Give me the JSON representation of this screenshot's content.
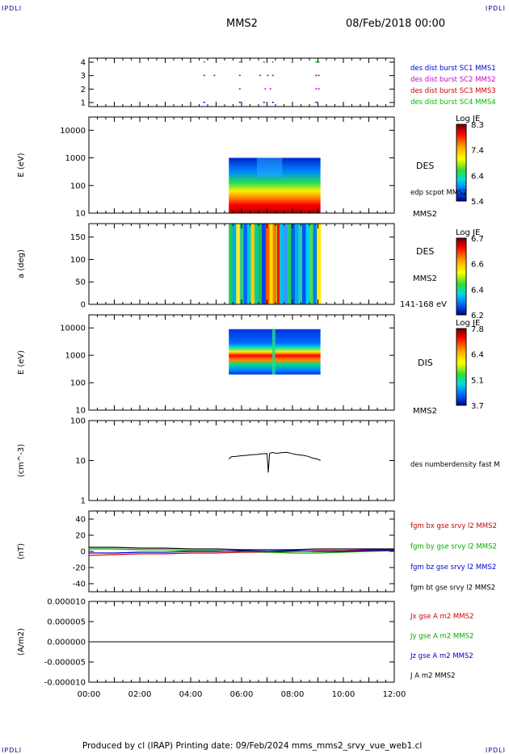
{
  "corner_tl": "IPDLI",
  "corner_tr": "IPDLI",
  "corner_bl": "IPDLI",
  "corner_br": "IPDLI",
  "title": "MMS2",
  "datetime": "08/Feb/2018 00:00",
  "footer": "Produced by cl (IRAP)   Printing date: 09/Feb/2024   mms_mms2_srvy_vue_web1.cl",
  "chart_data": [
    {
      "type": "scatter",
      "panel": "burst-coverage",
      "yticks": [
        "1",
        "2",
        "3",
        "4"
      ],
      "ylim": [
        0.7,
        4.3
      ],
      "legend": [
        {
          "label": "des dist burst SC1 MMS1",
          "color": "#0000cc"
        },
        {
          "label": "des dist burst SC2 MMS2",
          "color": "#cc00cc"
        },
        {
          "label": "des dist burst SC3 MMS3",
          "color": "#cc0000"
        },
        {
          "label": "des dist burst SC4 MMS4",
          "color": "#00bb00"
        }
      ],
      "series": [
        {
          "name": "des dist burst SC1 MMS1",
          "y": 1,
          "x": [
            4.5,
            5.9,
            6.85,
            7.2,
            8.9
          ]
        },
        {
          "name": "des dist burst SC2 MMS2",
          "y": 2,
          "x": [
            5.9,
            6.9,
            7.1,
            8.9,
            9.0
          ]
        },
        {
          "name": "des dist burst SC3 MMS3",
          "y": 3,
          "x": [
            4.5,
            4.9,
            5.9,
            6.7,
            7.0,
            7.2,
            8.9,
            9.0
          ]
        },
        {
          "name": "des dist burst SC4 MMS4",
          "y": 4,
          "x": [
            4.5,
            5.9,
            6.85,
            7.2,
            8.9,
            9.0
          ]
        }
      ]
    },
    {
      "type": "heatmap",
      "panel": "des-energy",
      "ylabel": "E (eV)",
      "log_y": true,
      "yticks": [
        "10",
        "100",
        "1000",
        "10000"
      ],
      "ylim": [
        10,
        30000
      ],
      "x_range": [
        5.5,
        9.1
      ],
      "colorbar": {
        "title": "Log JE",
        "ticks": [
          "8.3",
          "7.4",
          "6.4",
          "5.4"
        ]
      },
      "right_labels": [
        "DES",
        "edp scpot MMS2",
        "MMS2"
      ]
    },
    {
      "type": "heatmap",
      "panel": "des-pitch-angle",
      "ylabel": "a (deg)",
      "yticks": [
        "0",
        "50",
        "100",
        "150"
      ],
      "ylim": [
        0,
        180
      ],
      "x_range": [
        5.5,
        9.1
      ],
      "colorbar": {
        "title": "Log JE",
        "ticks": [
          "6.7",
          "6.6",
          "6.4",
          "6.2"
        ]
      },
      "right_labels": [
        "DES",
        "MMS2",
        "141-168 eV"
      ]
    },
    {
      "type": "heatmap",
      "panel": "dis-energy",
      "ylabel": "E (eV)",
      "log_y": true,
      "yticks": [
        "10",
        "100",
        "1000",
        "10000"
      ],
      "ylim": [
        10,
        30000
      ],
      "x_range": [
        5.5,
        9.1
      ],
      "colorbar": {
        "title": "Log JE",
        "ticks": [
          "7.8",
          "6.4",
          "5.1",
          "3.7"
        ]
      },
      "right_labels": [
        "DIS",
        "MMS2"
      ]
    },
    {
      "type": "line",
      "panel": "number-density",
      "ylabel": "(cm^-3)",
      "log_y": true,
      "yticks": [
        "1",
        "10",
        "100"
      ],
      "ylim": [
        1,
        100
      ],
      "legend": [
        {
          "label": "des numberdensity fast M",
          "color": "#000000"
        }
      ],
      "series": [
        {
          "name": "des numberdensity fast M",
          "color": "#000000",
          "x": [
            5.5,
            5.6,
            5.8,
            6.0,
            6.2,
            6.4,
            6.6,
            6.8,
            7.0,
            7.05,
            7.1,
            7.2,
            7.3,
            7.4,
            7.6,
            7.8,
            8.0,
            8.2,
            8.4,
            8.6,
            8.8,
            9.0,
            9.1
          ],
          "y": [
            11,
            12.5,
            12.8,
            13.2,
            13.5,
            14,
            14.2,
            14.8,
            15,
            5,
            15,
            16,
            15.5,
            15.2,
            15.8,
            16,
            14.8,
            14,
            13.5,
            12.8,
            11.5,
            10.8,
            10
          ]
        }
      ]
    },
    {
      "type": "line",
      "panel": "magnetic-field",
      "ylabel": "(nT)",
      "yticks": [
        "-40",
        "-20",
        "0",
        "20",
        "40"
      ],
      "ylim": [
        -50,
        50
      ],
      "legend": [
        {
          "label": "fgm bx gse srvy l2 MMS2",
          "color": "#cc0000"
        },
        {
          "label": "fgm by gse srvy l2 MMS2",
          "color": "#00aa00"
        },
        {
          "label": "fgm bz gse srvy l2 MMS2",
          "color": "#0000cc"
        },
        {
          "label": "fgm bt gse srvy l2 MMS2",
          "color": "#000000"
        }
      ],
      "series": [
        {
          "name": "fgm bx gse srvy l2 MMS2",
          "color": "#cc0000",
          "x": [
            0,
            1,
            2,
            3,
            4,
            5,
            6,
            7,
            8,
            9,
            10,
            11,
            12
          ],
          "y": [
            -5,
            -4,
            -3,
            -3,
            -2,
            -2,
            -1,
            -1,
            0,
            1,
            1,
            2,
            2
          ]
        },
        {
          "name": "fgm by gse srvy l2 MMS2",
          "color": "#00aa00",
          "x": [
            0,
            1,
            2,
            3,
            4,
            5,
            6,
            7,
            8,
            9,
            10,
            11,
            12
          ],
          "y": [
            3,
            3,
            2,
            2,
            1,
            1,
            0,
            -1,
            -2,
            -2,
            -1,
            0,
            1
          ]
        },
        {
          "name": "fgm bz gse srvy l2 MMS2",
          "color": "#0000cc",
          "x": [
            0,
            1,
            2,
            3,
            4,
            5,
            6,
            7,
            8,
            9,
            10,
            11,
            12
          ],
          "y": [
            -2,
            -2,
            -1,
            -1,
            0,
            0,
            1,
            0,
            1,
            0,
            0,
            1,
            1
          ]
        },
        {
          "name": "fgm bt gse srvy l2 MMS2",
          "color": "#000000",
          "x": [
            0,
            1,
            2,
            3,
            4,
            5,
            6,
            7,
            8,
            9,
            10,
            11,
            12
          ],
          "y": [
            5,
            5,
            4,
            4,
            3,
            3,
            2,
            2,
            2,
            3,
            3,
            3,
            3
          ]
        }
      ]
    },
    {
      "type": "line",
      "panel": "current-density",
      "ylabel": "(A/m2)",
      "yticks": [
        "-0.000010",
        "-0.000005",
        "0.000000",
        "0.000005",
        "0.000010"
      ],
      "ylim": [
        -1e-05,
        1e-05
      ],
      "xticks": [
        "00:00",
        "02:00",
        "04:00",
        "06:00",
        "08:00",
        "10:00",
        "12:00"
      ],
      "xlim": [
        0,
        12
      ],
      "legend": [
        {
          "label": "Jx gse A m2 MMS2",
          "color": "#cc0000"
        },
        {
          "label": "Jy gse A m2 MMS2",
          "color": "#00aa00"
        },
        {
          "label": "Jz gse A m2 MMS2",
          "color": "#0000cc"
        },
        {
          "label": "J A m2 MMS2",
          "color": "#000000"
        }
      ],
      "series": [
        {
          "name": "J A m2 MMS2",
          "color": "#000000",
          "x": [
            0,
            12
          ],
          "y": [
            0,
            0
          ]
        }
      ]
    }
  ]
}
